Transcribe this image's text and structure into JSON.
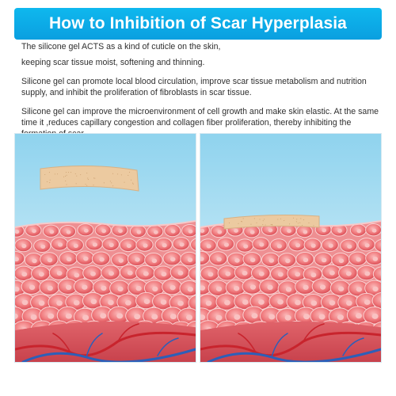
{
  "title": "How to Inhibition of Scar Hyperplasia",
  "paragraphs": [
    "The silicone gel ACTS as a kind of cuticle on the skin,",
    "keeping scar tissue moist, softening and thinning.",
    "Silicone gel can promote local blood circulation, improve scar tissue metabolism and nutrition supply, and inhibit the proliferation of fibroblasts in scar tissue.",
    "Silicone gel can improve the microenvironment of cell growth and make skin elastic. At the same time it ,reduces capillary congestion and collagen fiber proliferation, thereby inhibiting the formation of scar."
  ],
  "colors": {
    "banner": "#0fb8ee",
    "sky_top": "#8fd3ee",
    "sky_bottom": "#e4f5fb",
    "cell": "#f07b7e",
    "cell_dark": "#d94a53",
    "nucleus": "#f9c2c2",
    "vessel_red": "#c8242d",
    "vessel_blue": "#2d5fb8",
    "gel_patch": "#eccaa0"
  },
  "panels": [
    {
      "name": "gel-above-skin",
      "patch_state": "above"
    },
    {
      "name": "gel-applied-skin",
      "patch_state": "applied"
    }
  ]
}
